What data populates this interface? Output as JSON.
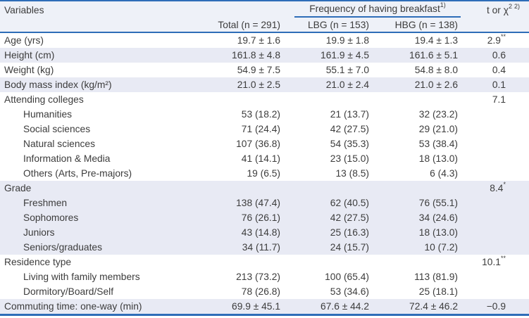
{
  "table": {
    "colors": {
      "line_blue": "#2e6db8",
      "stripe_bg": "#e8eaf4",
      "header_bg": "#eef1f8",
      "text": "#3c3c3c"
    },
    "header": {
      "variables_label": "Variables",
      "group_label": "Frequency of having breakfast",
      "group_sup": "1)",
      "stat_base": "t or χ",
      "stat_sup_a": "2",
      "stat_sup_b": "2)",
      "col_total": "Total (n = 291)",
      "col_lbg": "LBG (n = 153)",
      "col_hbg": "HBG (n = 138)"
    },
    "rows": [
      {
        "label": "Age (yrs)",
        "indent": false,
        "shaded": false,
        "total": "19.7 ± 1.6",
        "lbg": "19.9 ± 1.8",
        "hbg": "19.4 ± 1.3",
        "stat": "2.9",
        "stat_sup": "**"
      },
      {
        "label": "Height (cm)",
        "indent": false,
        "shaded": true,
        "total": "161.8 ± 4.8",
        "lbg": "161.9 ± 4.5",
        "hbg": "161.6 ± 5.1",
        "stat": "0.6",
        "stat_sup": ""
      },
      {
        "label": "Weight (kg)",
        "indent": false,
        "shaded": false,
        "total": "54.9 ± 7.5",
        "lbg": "55.1 ± 7.0",
        "hbg": "54.8 ± 8.0",
        "stat": "0.4",
        "stat_sup": ""
      },
      {
        "label": "Body mass index (kg/m²)",
        "indent": false,
        "shaded": true,
        "total": "21.0 ± 2.5",
        "lbg": "21.0 ± 2.4",
        "hbg": "21.0 ± 2.6",
        "stat": "0.1",
        "stat_sup": ""
      },
      {
        "label": "Attending colleges",
        "indent": false,
        "shaded": false,
        "total": "",
        "lbg": "",
        "hbg": "",
        "stat": "7.1",
        "stat_sup": ""
      },
      {
        "label": "Humanities",
        "indent": true,
        "shaded": false,
        "total": "53 (18.2)",
        "lbg": "21 (13.7)",
        "hbg": "32 (23.2)",
        "stat": "",
        "stat_sup": ""
      },
      {
        "label": "Social sciences",
        "indent": true,
        "shaded": false,
        "total": "71 (24.4)",
        "lbg": "42 (27.5)",
        "hbg": "29 (21.0)",
        "stat": "",
        "stat_sup": ""
      },
      {
        "label": "Natural sciences",
        "indent": true,
        "shaded": false,
        "total": "107 (36.8)",
        "lbg": "54 (35.3)",
        "hbg": "53 (38.4)",
        "stat": "",
        "stat_sup": ""
      },
      {
        "label": "Information & Media",
        "indent": true,
        "shaded": false,
        "total": "41 (14.1)",
        "lbg": "23 (15.0)",
        "hbg": "18 (13.0)",
        "stat": "",
        "stat_sup": ""
      },
      {
        "label": "Others (Arts, Pre-majors)",
        "indent": true,
        "shaded": false,
        "total": "19 (6.5)",
        "lbg": "13 (8.5)",
        "hbg": "6 (4.3)",
        "stat": "",
        "stat_sup": ""
      },
      {
        "label": "Grade",
        "indent": false,
        "shaded": true,
        "total": "",
        "lbg": "",
        "hbg": "",
        "stat": "8.4",
        "stat_sup": "*"
      },
      {
        "label": "Freshmen",
        "indent": true,
        "shaded": true,
        "total": "138 (47.4)",
        "lbg": "62 (40.5)",
        "hbg": "76 (55.1)",
        "stat": "",
        "stat_sup": ""
      },
      {
        "label": "Sophomores",
        "indent": true,
        "shaded": true,
        "total": "76 (26.1)",
        "lbg": "42 (27.5)",
        "hbg": "34 (24.6)",
        "stat": "",
        "stat_sup": ""
      },
      {
        "label": "Juniors",
        "indent": true,
        "shaded": true,
        "total": "43 (14.8)",
        "lbg": "25 (16.3)",
        "hbg": "18 (13.0)",
        "stat": "",
        "stat_sup": ""
      },
      {
        "label": "Seniors/graduates",
        "indent": true,
        "shaded": true,
        "total": "34 (11.7)",
        "lbg": "24 (15.7)",
        "hbg": "10 (7.2)",
        "stat": "",
        "stat_sup": ""
      },
      {
        "label": "Residence type",
        "indent": false,
        "shaded": false,
        "total": "",
        "lbg": "",
        "hbg": "",
        "stat": "10.1",
        "stat_sup": "**"
      },
      {
        "label": "Living with family members",
        "indent": true,
        "shaded": false,
        "total": "213 (73.2)",
        "lbg": "100 (65.4)",
        "hbg": "113 (81.9)",
        "stat": "",
        "stat_sup": ""
      },
      {
        "label": "Dormitory/Board/Self",
        "indent": true,
        "shaded": false,
        "total": "78 (26.8)",
        "lbg": "53 (34.6)",
        "hbg": "25 (18.1)",
        "stat": "",
        "stat_sup": ""
      },
      {
        "label": "Commuting time: one-way (min)",
        "indent": false,
        "shaded": true,
        "total": "69.9 ± 45.1",
        "lbg": "67.6 ± 44.2",
        "hbg": "72.4 ± 46.2",
        "stat": "−0.9",
        "stat_sup": ""
      }
    ]
  }
}
